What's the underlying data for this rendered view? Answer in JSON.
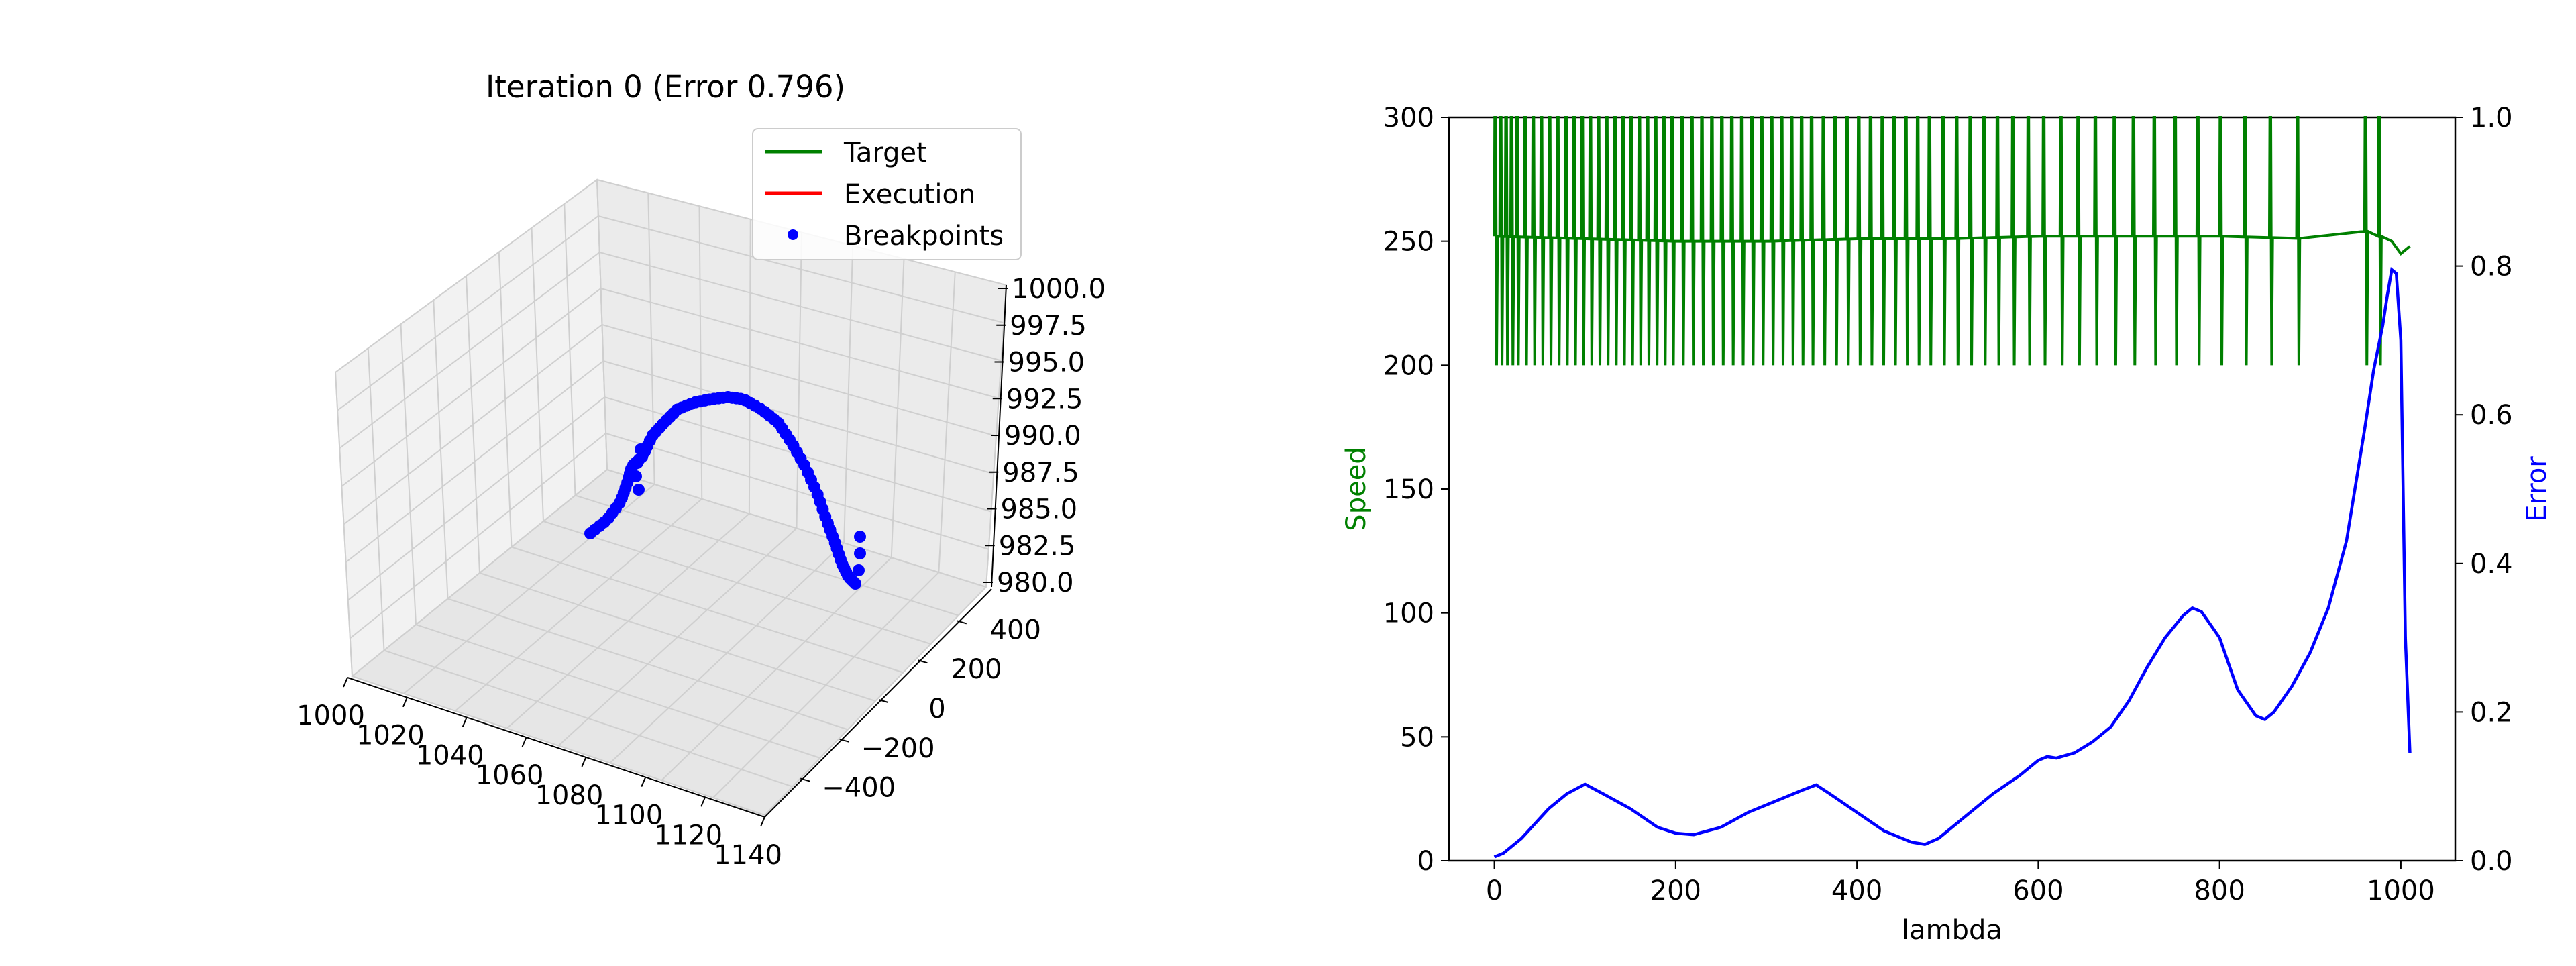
{
  "chart_data": [
    {
      "type": "line",
      "projection": "3d",
      "title": "Iteration 0 (Error 0.796)",
      "xlabel": "",
      "ylabel": "",
      "zlabel": "",
      "x_ticks": [
        "1000",
        "1020",
        "1040",
        "1060",
        "1080",
        "1100",
        "1120",
        "1140"
      ],
      "y_ticks": [
        "400",
        "200",
        "0",
        "−200",
        "−400"
      ],
      "z_ticks": [
        "1000.0",
        "997.5",
        "995.0",
        "992.5",
        "990.0",
        "987.5",
        "985.0",
        "982.5",
        "980.0"
      ],
      "xlim": [
        1000,
        1140
      ],
      "ylim": [
        -400,
        400
      ],
      "zlim": [
        980,
        1000
      ],
      "legend": {
        "position": "top-right",
        "entries": [
          {
            "label": "Target",
            "color": "#008000",
            "marker": "line"
          },
          {
            "label": "Execution",
            "color": "#ff0000",
            "marker": "line"
          },
          {
            "label": "Breakpoints",
            "color": "#0000ff",
            "marker": "dot"
          }
        ]
      },
      "series": [
        {
          "name": "Target",
          "color": "#008000"
        },
        {
          "name": "Execution",
          "color": "#ff0000"
        },
        {
          "name": "Breakpoints",
          "color": "#0000ff"
        }
      ],
      "grid": true
    },
    {
      "type": "line",
      "title": "",
      "xlabel": "lambda",
      "ylabel_left": "Speed",
      "ylabel_right": "Error",
      "xlim": [
        -50,
        1060
      ],
      "ylim_left": [
        0,
        300
      ],
      "ylim_right": [
        0,
        1
      ],
      "x_ticks": [
        "0",
        "200",
        "400",
        "600",
        "800",
        "1000"
      ],
      "y_left_ticks": [
        "0",
        "50",
        "100",
        "150",
        "200",
        "250",
        "300"
      ],
      "y_right_ticks": [
        "0.0",
        "0.2",
        "0.4",
        "0.6",
        "0.8",
        "1.0"
      ],
      "speed_base": 252,
      "speed_spike_lambdas": [
        0,
        6,
        12,
        18,
        24,
        33,
        42,
        51,
        60,
        69,
        78,
        87,
        96,
        105,
        114,
        123,
        132,
        141,
        150,
        159,
        168,
        177,
        186,
        195,
        206,
        217,
        228,
        239,
        250,
        261,
        272,
        283,
        294,
        305,
        316,
        327,
        338,
        349,
        362,
        375,
        388,
        401,
        414,
        427,
        440,
        453,
        466,
        479,
        494,
        509,
        524,
        539,
        554,
        571,
        588,
        605,
        624,
        643,
        662,
        683,
        704,
        727,
        750,
        775,
        800,
        827,
        855,
        885,
        960,
        975
      ],
      "series": [
        {
          "name": "Speed",
          "axis": "left",
          "color": "#008000",
          "x": [
            0,
            100,
            200,
            300,
            400,
            500,
            600,
            700,
            800,
            900,
            960,
            990,
            1000,
            1010
          ],
          "y": [
            252,
            251,
            250,
            250,
            251,
            251,
            252,
            252,
            252,
            251,
            254,
            250,
            245,
            248
          ]
        },
        {
          "name": "Error",
          "axis": "right",
          "color": "#0000ff",
          "x": [
            0,
            10,
            30,
            60,
            80,
            100,
            120,
            150,
            180,
            200,
            220,
            250,
            280,
            310,
            340,
            355,
            370,
            400,
            430,
            460,
            475,
            490,
            520,
            550,
            580,
            600,
            610,
            620,
            640,
            660,
            680,
            700,
            720,
            740,
            760,
            770,
            780,
            800,
            820,
            840,
            850,
            860,
            880,
            900,
            920,
            940,
            960,
            970,
            980,
            985,
            990,
            995,
            1000,
            1005,
            1010
          ],
          "y": [
            0.005,
            0.01,
            0.03,
            0.07,
            0.09,
            0.103,
            0.09,
            0.07,
            0.045,
            0.037,
            0.035,
            0.045,
            0.065,
            0.08,
            0.095,
            0.102,
            0.09,
            0.065,
            0.04,
            0.025,
            0.022,
            0.03,
            0.06,
            0.09,
            0.115,
            0.135,
            0.14,
            0.138,
            0.145,
            0.16,
            0.18,
            0.215,
            0.26,
            0.3,
            0.33,
            0.34,
            0.335,
            0.3,
            0.23,
            0.195,
            0.19,
            0.2,
            0.235,
            0.28,
            0.34,
            0.43,
            0.58,
            0.66,
            0.72,
            0.76,
            0.795,
            0.79,
            0.7,
            0.3,
            0.145
          ]
        }
      ],
      "grid": false
    }
  ]
}
